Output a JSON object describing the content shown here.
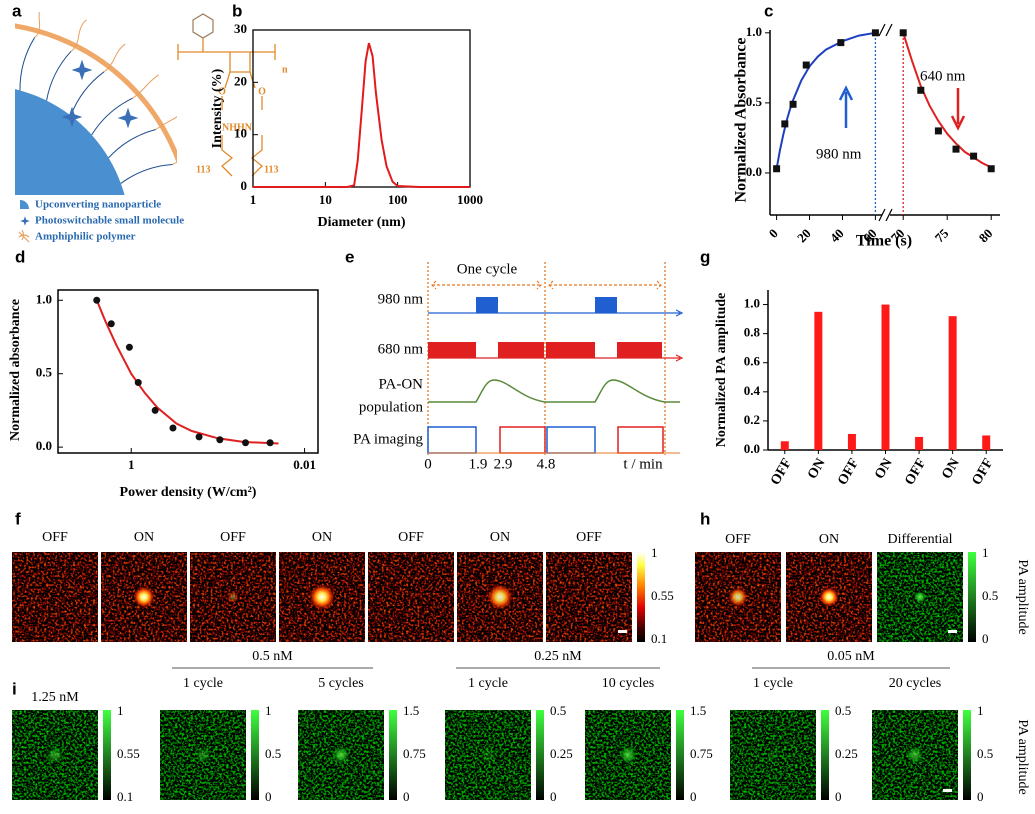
{
  "panel_labels": [
    "a",
    "b",
    "c",
    "d",
    "e",
    "f",
    "g",
    "h",
    "i"
  ],
  "panel_a": {
    "legend": [
      "Upconverting nanoparticle",
      "Photoswitchable small molecule",
      "Amphiphilic polymer"
    ],
    "structure": {
      "repeat": "n",
      "amide": "NHHN",
      "oxygen": "O",
      "chain_length": "113"
    }
  },
  "chart_data": [
    {
      "type": "line",
      "x_label": "Diameter (nm)",
      "y_label": "Intensity (%)",
      "log_x": true,
      "x": [
        1,
        10,
        20,
        25,
        28,
        32,
        36,
        40,
        45,
        50,
        60,
        70,
        85,
        100,
        200,
        1000
      ],
      "series": [
        {
          "color": "#e31a1c",
          "values": [
            0,
            0,
            0,
            0.3,
            5,
            15,
            24,
            27.5,
            25,
            18,
            9,
            4,
            1,
            0.2,
            0,
            0
          ]
        }
      ],
      "xlim": [
        1,
        1000
      ],
      "ylim": [
        0,
        30
      ],
      "xticks": [
        1,
        10,
        100,
        1000
      ],
      "yticks": [
        0,
        10,
        20,
        30
      ]
    },
    {
      "type": "scatter",
      "x_label": "Time (s)",
      "y_label": "Normalized Absorbance",
      "xlim": [
        [
          -4,
          64
        ],
        [
          68.5,
          81
        ]
      ],
      "ylim": [
        -0.3,
        1.02
      ],
      "xticks": [
        0,
        20,
        40,
        60,
        70,
        75,
        80
      ],
      "yticks": [
        {
          "value": 0,
          "label": "0.0"
        },
        {
          "value": 0.5,
          "label": "0.5"
        },
        {
          "value": 1,
          "label": "1.0"
        }
      ],
      "series": [
        {
          "color": "#111111",
          "x": [
            0,
            5,
            10,
            18,
            39,
            60
          ],
          "values": [
            0.03,
            0.35,
            0.49,
            0.77,
            0.93,
            1.0
          ]
        },
        {
          "color": "#111111",
          "x": [
            70,
            72,
            74,
            76,
            78,
            80
          ],
          "values": [
            1.0,
            0.59,
            0.3,
            0.17,
            0.12,
            0.03
          ]
        }
      ],
      "fits": [
        {
          "color": "#1f3fbf",
          "x": [
            0,
            2,
            4,
            6,
            8,
            10,
            15,
            20,
            25,
            30,
            40,
            50,
            60
          ],
          "values": [
            0.03,
            0.16,
            0.27,
            0.37,
            0.45,
            0.52,
            0.66,
            0.76,
            0.83,
            0.88,
            0.94,
            0.98,
            1.0
          ]
        },
        {
          "color": "#e02020",
          "x": [
            70,
            71,
            72,
            73,
            74,
            75,
            76,
            77,
            78,
            79,
            80
          ],
          "values": [
            1.0,
            0.8,
            0.62,
            0.48,
            0.37,
            0.28,
            0.21,
            0.15,
            0.11,
            0.07,
            0.04
          ]
        }
      ],
      "vlines": [
        {
          "x": 60,
          "color": "#1f5fd0"
        },
        {
          "x": 70,
          "color": "#e02020"
        }
      ],
      "annotations": [
        {
          "text": "980 nm",
          "color": "#1f5fd0"
        },
        {
          "text": "640 nm",
          "color": "#e02020"
        }
      ]
    },
    {
      "type": "scatter",
      "x_label": "Power density (W/cm²)",
      "y_label": "Normalized absorbance",
      "log_x": true,
      "xlim": [
        7,
        0.007
      ],
      "ylim": [
        -0.04,
        1.07
      ],
      "xticks": [
        1,
        0.01
      ],
      "yticks": [
        {
          "value": 0,
          "label": "0.0"
        },
        {
          "value": 0.5,
          "label": "0.5"
        },
        {
          "value": 1,
          "label": "1.0"
        }
      ],
      "series": [
        {
          "color": "#111111",
          "x": [
            2.5,
            1.7,
            1.05,
            0.83,
            0.53,
            0.33,
            0.165,
            0.095,
            0.048,
            0.025
          ],
          "values": [
            1.0,
            0.84,
            0.68,
            0.44,
            0.25,
            0.13,
            0.07,
            0.05,
            0.03,
            0.03
          ]
        }
      ],
      "fits": [
        {
          "color": "#e02020",
          "x": [
            2.5,
            2,
            1.5,
            1,
            0.7,
            0.5,
            0.3,
            0.2,
            0.1,
            0.05,
            0.02
          ],
          "values": [
            1.0,
            0.86,
            0.7,
            0.5,
            0.37,
            0.27,
            0.16,
            0.11,
            0.06,
            0.035,
            0.025
          ]
        }
      ]
    },
    {
      "type": "bar",
      "y_label": "Normalized PA amplitude",
      "color": "#ff1a1a",
      "categories": [
        "OFF",
        "ON",
        "OFF",
        "ON",
        "OFF",
        "ON",
        "OFF"
      ],
      "values": [
        0.06,
        0.95,
        0.11,
        1.0,
        0.09,
        0.92,
        0.1
      ],
      "ylim": [
        0,
        1.1
      ],
      "yticks": [
        {
          "value": 0,
          "label": "0.0"
        },
        {
          "value": 0.2,
          "label": "0.2"
        },
        {
          "value": 0.4,
          "label": "0.4"
        },
        {
          "value": 0.6,
          "label": "0.6"
        },
        {
          "value": 0.8,
          "label": "0.8"
        },
        {
          "value": 1,
          "label": "1.0"
        }
      ]
    }
  ],
  "panel_e": {
    "cycle_label": "One cycle",
    "rows": [
      "980 nm",
      "680 nm",
      "PA-ON",
      "population",
      "PA imaging"
    ],
    "time_ticks": [
      "0",
      "1.9",
      "2.9",
      "4.8"
    ],
    "time_unit": "t / min"
  },
  "panel_f": {
    "labels": [
      "OFF",
      "ON",
      "OFF",
      "ON",
      "OFF",
      "ON",
      "OFF"
    ],
    "colorbar_ticks": [
      "1",
      "0.55",
      "0.1"
    ]
  },
  "panel_h": {
    "labels": [
      "OFF",
      "ON",
      "Differential"
    ],
    "colorbar_ticks": [
      "1",
      "0.5",
      "0"
    ],
    "colorbar_title": "PA amplitude"
  },
  "panel_i": {
    "groups": [
      {
        "label": "1.25 nM",
        "images": []
      },
      {
        "label": "0.5 nM",
        "images": [
          "1 cycle",
          "5 cycles"
        ]
      },
      {
        "label": "0.25 nM",
        "images": [
          "1 cycle",
          "10 cycles"
        ]
      },
      {
        "label": "0.05 nM",
        "images": [
          "1 cycle",
          "20 cycles"
        ]
      }
    ],
    "colorbars": [
      [
        "1",
        "0.55",
        "0.1"
      ],
      [
        "1",
        "0.5",
        "0"
      ],
      [
        "1.5",
        "0.75",
        "0"
      ],
      [
        "0.5",
        "0.25",
        "0"
      ],
      [
        "1.5",
        "0.75",
        "0"
      ],
      [
        "0.5",
        "0.25",
        "0"
      ],
      [
        "1",
        "0.5",
        "0"
      ]
    ],
    "colorbar_title": "PA amplitude"
  }
}
